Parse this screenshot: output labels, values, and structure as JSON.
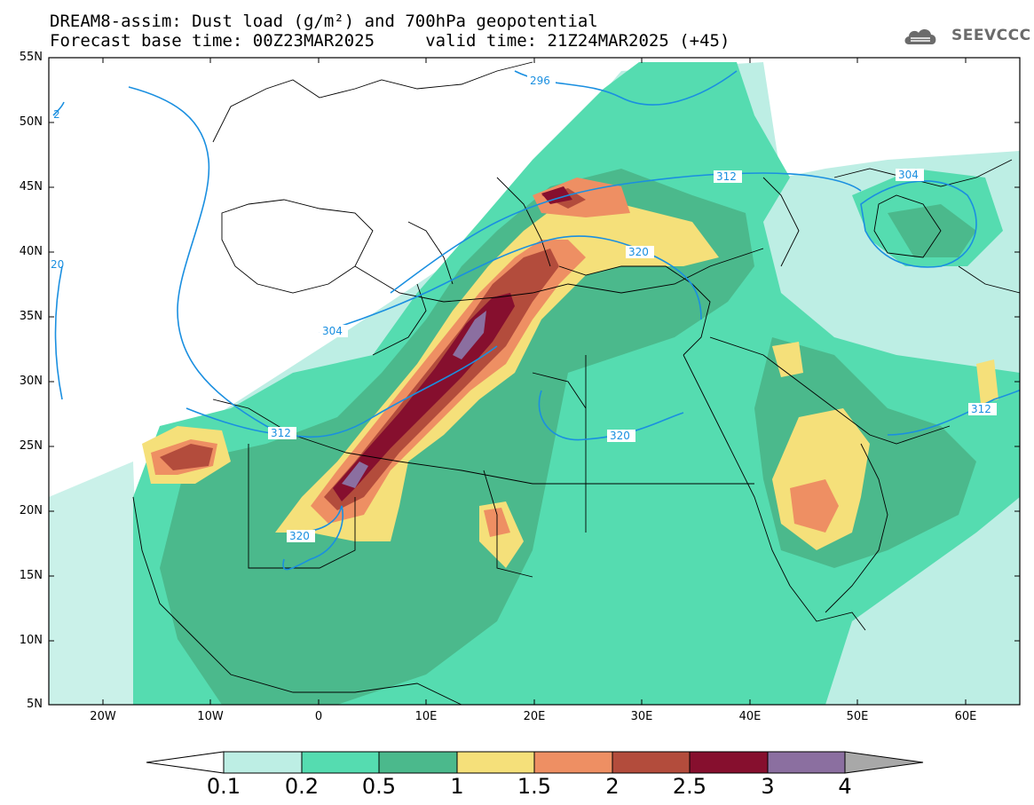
{
  "title": {
    "line1": "DREAM8-assim: Dust load (g/m²) and 700hPa geopotential",
    "line2": "Forecast base time: 00Z23MAR2025     valid time: 21Z24MAR2025 (+45)"
  },
  "logo": {
    "icon": "cloud-icon",
    "text": "SEEVCCC"
  },
  "axes": {
    "lat_labels": [
      "55N",
      "50N",
      "45N",
      "40N",
      "35N",
      "30N",
      "25N",
      "20N",
      "15N",
      "10N",
      "5N"
    ],
    "lon_labels": [
      "20W",
      "10W",
      "0",
      "10E",
      "20E",
      "30E",
      "40E",
      "50E",
      "60E"
    ]
  },
  "contours": {
    "color": "#1a8fe0",
    "labels": [
      "296",
      "312",
      "304",
      "320",
      "304",
      "312",
      "320",
      "320",
      "312",
      "20",
      "2"
    ]
  },
  "colorbar": {
    "ticks": [
      "0.1",
      "0.2",
      "0.5",
      "1",
      "1.5",
      "2",
      "2.5",
      "3",
      "4"
    ],
    "colors": [
      "#ffffff",
      "#bdeee4",
      "#55dcb0",
      "#4bb98c",
      "#f5e07a",
      "#ee8f63",
      "#b34c3c",
      "#860f2e",
      "#8b6fa0",
      "#a8a8a8"
    ]
  }
}
